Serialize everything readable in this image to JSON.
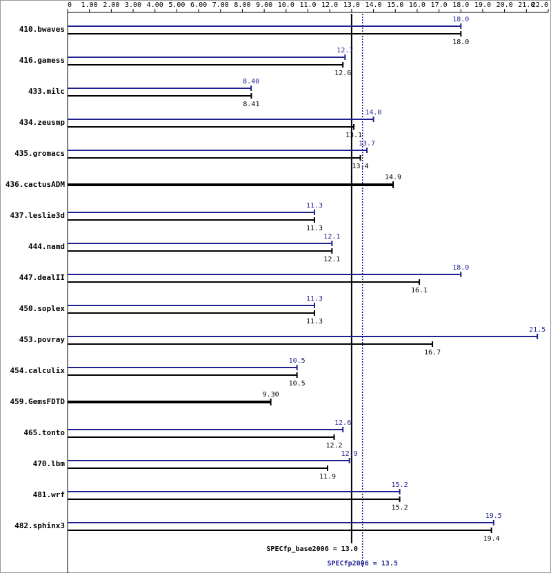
{
  "chart_data": {
    "type": "bar",
    "categories": [
      "410.bwaves",
      "416.gamess",
      "433.milc",
      "434.zeusmp",
      "435.gromacs",
      "436.cactusADM",
      "437.leslie3d",
      "444.namd",
      "447.dealII",
      "450.soplex",
      "453.povray",
      "454.calculix",
      "459.GemsFDTD",
      "465.tonto",
      "470.lbm",
      "481.wrf",
      "482.sphinx3"
    ],
    "series": [
      {
        "color": "#000000",
        "values": [
          18.0,
          12.6,
          8.41,
          13.1,
          13.4,
          14.9,
          11.3,
          12.1,
          16.1,
          11.3,
          16.7,
          10.5,
          9.3,
          12.2,
          11.9,
          15.2,
          19.4
        ],
        "value_labels": [
          "18.0",
          "12.6",
          "8.41",
          "13.1",
          "13.4",
          "14.9",
          "11.3",
          "12.1",
          "16.1",
          "11.3",
          "16.7",
          "10.5",
          "9.30",
          "12.2",
          "11.9",
          "15.2",
          "19.4"
        ]
      },
      {
        "color": "#1f1f8f",
        "values": [
          18.0,
          12.7,
          8.4,
          14.0,
          13.7,
          null,
          11.3,
          12.1,
          18.0,
          11.3,
          21.5,
          10.5,
          null,
          12.6,
          12.9,
          15.2,
          19.5
        ],
        "value_labels": [
          "18.0",
          "12.7",
          "8.40",
          "14.0",
          "13.7",
          null,
          "11.3",
          "12.1",
          "18.0",
          "11.3",
          "21.5",
          "10.5",
          null,
          "12.6",
          "12.9",
          "15.2",
          "19.5"
        ]
      }
    ],
    "xlim": [
      0,
      22
    ],
    "xticks": [
      0,
      {
        "value": 1,
        "label": "1.00"
      },
      {
        "value": 2,
        "label": "2.00"
      },
      {
        "value": 3,
        "label": "3.00"
      },
      {
        "value": 4,
        "label": "4.00"
      },
      {
        "value": 5,
        "label": "5.00"
      },
      {
        "value": 6,
        "label": "6.00"
      },
      {
        "value": 7,
        "label": "7.00"
      },
      {
        "value": 8,
        "label": "8.00"
      },
      {
        "value": 9,
        "label": "9.00"
      },
      {
        "value": 10,
        "label": "10.0"
      },
      {
        "value": 11,
        "label": "11.0"
      },
      {
        "value": 12,
        "label": "12.0"
      },
      {
        "value": 13,
        "label": "13.0"
      },
      {
        "value": 14,
        "label": "14.0"
      },
      {
        "value": 15,
        "label": "15.0"
      },
      {
        "value": 16,
        "label": "16.0"
      },
      {
        "value": 17,
        "label": "17.0"
      },
      {
        "value": 18,
        "label": "18.0"
      },
      {
        "value": 19,
        "label": "19.0"
      },
      {
        "value": 20,
        "label": "20.0"
      },
      {
        "value": 21,
        "label": "21.0"
      },
      {
        "value": 22,
        "label": "22.0"
      }
    ],
    "reference_lines": [
      {
        "label": "SPECfp_base2006 = 13.0",
        "value": 13.0,
        "color": "#000000",
        "style": "solid"
      },
      {
        "label": "SPECfp2006 = 13.5",
        "value": 13.5,
        "color": "#1f1f8f",
        "style": "dotted"
      }
    ]
  }
}
